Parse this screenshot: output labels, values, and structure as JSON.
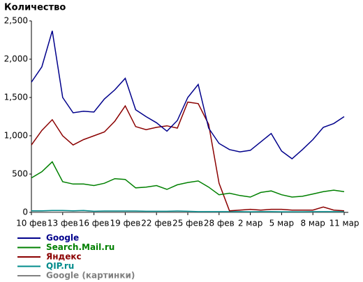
{
  "chart_data": {
    "type": "line",
    "title": "Количество",
    "categories": [
      "10 фев",
      null,
      null,
      "13 фев",
      null,
      null,
      "16 фев",
      null,
      null,
      "19 фев",
      null,
      null,
      "22 фев",
      null,
      null,
      "25 фев",
      null,
      null,
      "28 фев",
      null,
      null,
      "2 мар",
      null,
      null,
      "5 мар",
      null,
      null,
      "8 мар",
      null,
      null,
      "11 мар"
    ],
    "ylim": [
      0,
      2500
    ],
    "yticks": [
      0,
      500,
      {
        "value": 1000,
        "label": "1,000"
      },
      {
        "value": 1500,
        "label": "1,500"
      },
      {
        "value": 2000,
        "label": "2,000"
      },
      {
        "value": 2500,
        "label": "2,500"
      }
    ],
    "series": [
      {
        "name": "Google",
        "color": "#00008b",
        "values": [
          1700,
          1900,
          2370,
          1500,
          1300,
          1320,
          1310,
          1480,
          1600,
          1750,
          1340,
          1250,
          1170,
          1060,
          1200,
          1500,
          1670,
          1100,
          900,
          820,
          790,
          810,
          920,
          1030,
          800,
          700,
          820,
          950,
          1110,
          1160,
          1250
        ]
      },
      {
        "name": "Search.Mail.ru",
        "color": "#008000",
        "values": [
          450,
          530,
          660,
          400,
          370,
          370,
          350,
          380,
          440,
          430,
          320,
          330,
          350,
          300,
          360,
          390,
          410,
          330,
          230,
          250,
          220,
          200,
          260,
          280,
          230,
          200,
          210,
          240,
          270,
          290,
          270
        ]
      },
      {
        "name": "Яндекс",
        "color": "#8b0000",
        "values": [
          880,
          1070,
          1210,
          1000,
          880,
          950,
          1000,
          1050,
          1190,
          1390,
          1120,
          1080,
          1110,
          1130,
          1100,
          1440,
          1420,
          1150,
          380,
          20,
          30,
          40,
          30,
          40,
          40,
          30,
          30,
          30,
          70,
          30,
          20
        ]
      },
      {
        "name": "QIP.ru",
        "color": "#008b8b",
        "values": [
          20,
          20,
          25,
          25,
          20,
          25,
          15,
          18,
          18,
          18,
          18,
          15,
          15,
          15,
          18,
          15,
          10,
          10,
          10,
          10,
          10,
          8,
          10,
          10,
          8,
          8,
          8,
          10,
          10,
          10,
          10
        ]
      },
      {
        "name": "Google (картинки)",
        "color": "#808080",
        "values": [
          5,
          5,
          5,
          5,
          5,
          5,
          5,
          5,
          5,
          5,
          5,
          5,
          5,
          5,
          5,
          5,
          5,
          5,
          5,
          5,
          5,
          5,
          5,
          5,
          5,
          5,
          5,
          5,
          5,
          5,
          5
        ]
      }
    ]
  }
}
